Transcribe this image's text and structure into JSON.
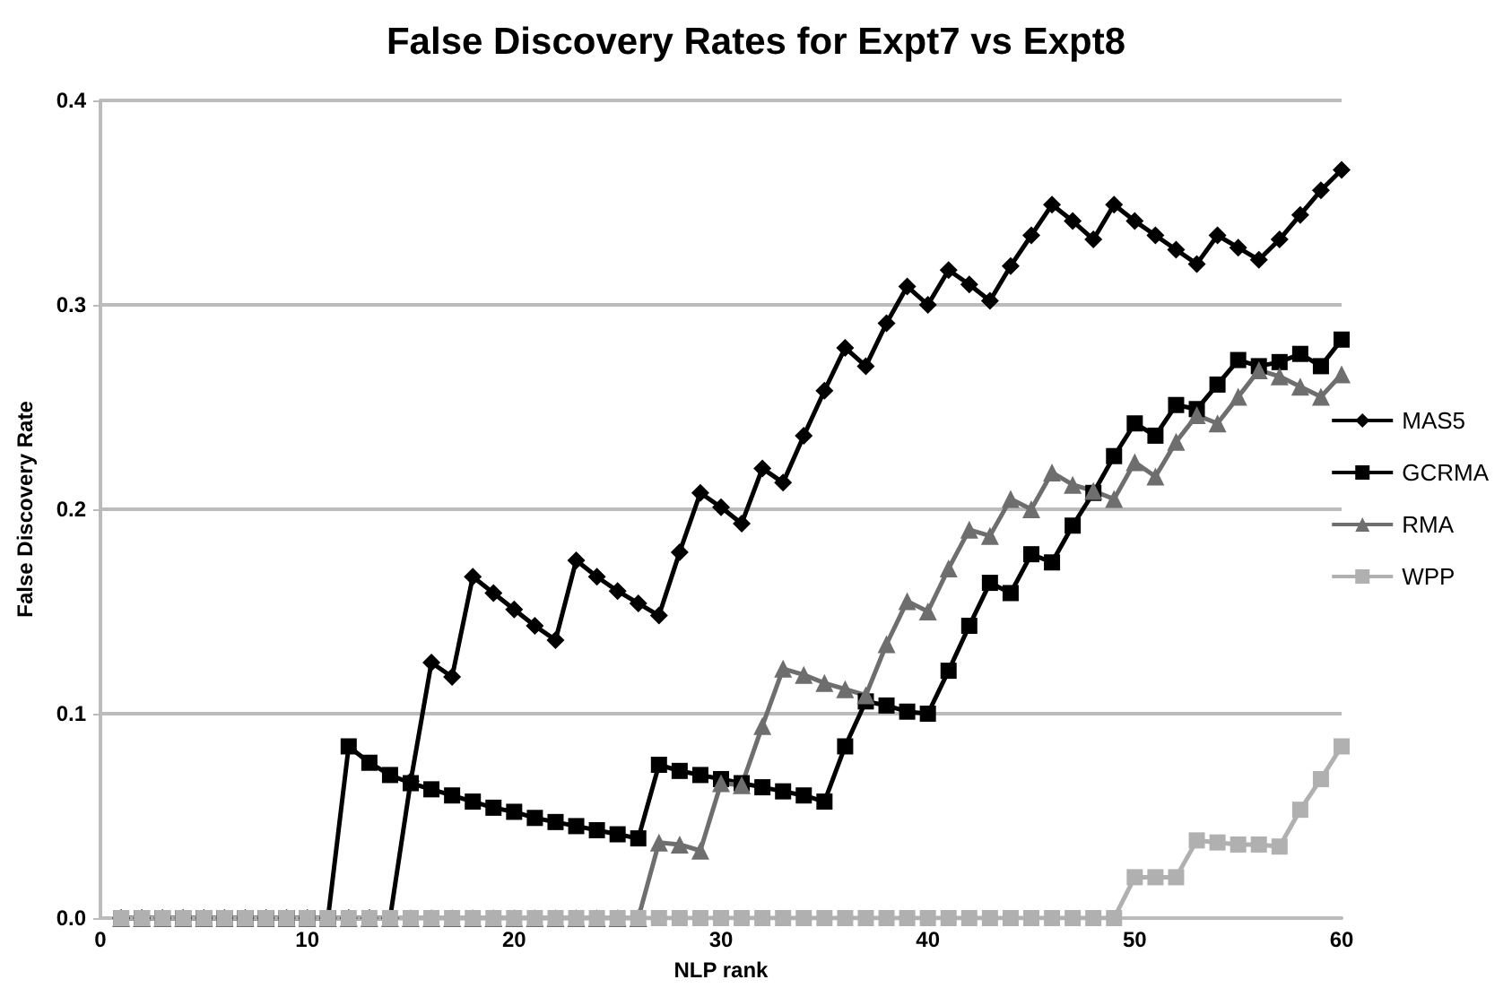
{
  "chart_data": {
    "type": "line",
    "title": "False Discovery Rates for Expt7 vs Expt8",
    "xlabel": "NLP rank",
    "ylabel": "False Discovery Rate",
    "x": [
      1,
      2,
      3,
      4,
      5,
      6,
      7,
      8,
      9,
      10,
      11,
      12,
      13,
      14,
      15,
      16,
      17,
      18,
      19,
      20,
      21,
      22,
      23,
      24,
      25,
      26,
      27,
      28,
      29,
      30,
      31,
      32,
      33,
      34,
      35,
      36,
      37,
      38,
      39,
      40,
      41,
      42,
      43,
      44,
      45,
      46,
      47,
      48,
      49,
      50,
      51,
      52,
      53,
      54,
      55,
      56,
      57,
      58,
      59,
      60
    ],
    "series": [
      {
        "name": "MAS5",
        "color": "#000000",
        "marker": "diamond",
        "values": [
          0,
          0,
          0,
          0,
          0,
          0,
          0,
          0,
          0,
          0,
          0,
          0,
          0,
          0,
          0.067,
          0.125,
          0.118,
          0.167,
          0.159,
          0.151,
          0.143,
          0.136,
          0.175,
          0.167,
          0.16,
          0.154,
          0.148,
          0.179,
          0.208,
          0.201,
          0.193,
          0.22,
          0.213,
          0.236,
          0.258,
          0.279,
          0.27,
          0.291,
          0.309,
          0.3,
          0.317,
          0.31,
          0.302,
          0.319,
          0.334,
          0.349,
          0.341,
          0.332,
          0.349,
          0.341,
          0.334,
          0.327,
          0.32,
          0.334,
          0.328,
          0.322,
          0.332,
          0.344,
          0.356,
          0.366
        ]
      },
      {
        "name": "GCRMA",
        "color": "#000000",
        "marker": "square",
        "values": [
          0,
          0,
          0,
          0,
          0,
          0,
          0,
          0,
          0,
          0,
          0,
          0.084,
          0.076,
          0.07,
          0.066,
          0.063,
          0.06,
          0.057,
          0.054,
          0.052,
          0.049,
          0.047,
          0.045,
          0.043,
          0.041,
          0.039,
          0.075,
          0.072,
          0.07,
          0.068,
          0.066,
          0.064,
          0.062,
          0.06,
          0.057,
          0.084,
          0.106,
          0.104,
          0.101,
          0.1,
          0.121,
          0.143,
          0.164,
          0.159,
          0.178,
          0.174,
          0.192,
          0.208,
          0.226,
          0.242,
          0.236,
          0.251,
          0.249,
          0.261,
          0.273,
          0.27,
          0.272,
          0.276,
          0.27,
          0.283
        ]
      },
      {
        "name": "RMA",
        "color": "#6e6e6e",
        "marker": "triangle",
        "values": [
          0,
          0,
          0,
          0,
          0,
          0,
          0,
          0,
          0,
          0,
          0,
          0,
          0,
          0,
          0,
          0,
          0,
          0,
          0,
          0,
          0,
          0,
          0,
          0,
          0,
          0,
          0.037,
          0.036,
          0.033,
          0.066,
          0.065,
          0.094,
          0.122,
          0.119,
          0.115,
          0.112,
          0.109,
          0.134,
          0.155,
          0.15,
          0.171,
          0.19,
          0.187,
          0.205,
          0.2,
          0.218,
          0.212,
          0.209,
          0.205,
          0.223,
          0.216,
          0.233,
          0.246,
          0.242,
          0.255,
          0.268,
          0.265,
          0.26,
          0.255,
          0.266
        ]
      },
      {
        "name": "WPP",
        "color": "#b0b0b0",
        "marker": "square",
        "values": [
          0,
          0,
          0,
          0,
          0,
          0,
          0,
          0,
          0,
          0,
          0,
          0,
          0,
          0,
          0,
          0,
          0,
          0,
          0,
          0,
          0,
          0,
          0,
          0,
          0,
          0,
          0,
          0,
          0,
          0,
          0,
          0,
          0,
          0,
          0,
          0,
          0,
          0,
          0,
          0,
          0,
          0,
          0,
          0,
          0,
          0,
          0,
          0,
          0,
          0.02,
          0.02,
          0.02,
          0.038,
          0.037,
          0.036,
          0.036,
          0.035,
          0.053,
          0.068,
          0.084
        ]
      }
    ],
    "xlim": [
      0,
      60
    ],
    "xticks": [
      0,
      10,
      20,
      30,
      40,
      50,
      60
    ],
    "ylim": [
      0,
      0.4
    ],
    "yticks": [
      {
        "value": 0,
        "label": "0.0"
      },
      {
        "value": 0.1,
        "label": "0.1"
      },
      {
        "value": 0.2,
        "label": "0.2"
      },
      {
        "value": 0.3,
        "label": "0.3"
      },
      {
        "value": 0.4,
        "label": "0.4"
      }
    ],
    "grid": "y",
    "legend": "right",
    "line_style": "solid"
  }
}
